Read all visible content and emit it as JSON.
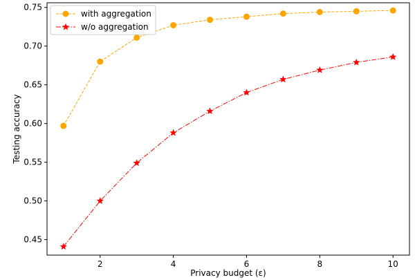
{
  "chart_data": {
    "type": "line",
    "xlabel": "Privacy budget (ε)",
    "ylabel": "Testing accuracy",
    "xlim": [
      0.55,
      10.45
    ],
    "ylim": [
      0.43,
      0.756
    ],
    "xticks": [
      2,
      4,
      6,
      8,
      10
    ],
    "yticks": [
      0.45,
      0.5,
      0.55,
      0.6,
      0.65,
      0.7,
      0.75
    ],
    "ytick_labels": [
      "0.45",
      "0.50",
      "0.55",
      "0.60",
      "0.65",
      "0.70",
      "0.75"
    ],
    "grid": false,
    "legend_position": "top-left",
    "x": [
      1,
      2,
      3,
      4,
      5,
      6,
      7,
      8,
      9,
      10
    ],
    "series": [
      {
        "name": "with aggregation",
        "color": "#FFA500",
        "marker": "circle",
        "line_style": "dashed",
        "values": [
          0.597,
          0.68,
          0.711,
          0.727,
          0.734,
          0.738,
          0.742,
          0.744,
          0.745,
          0.746
        ]
      },
      {
        "name": "w/o aggregation",
        "color": "#FF0000",
        "marker": "star",
        "line_style": "dash-dot",
        "values": [
          0.441,
          0.5,
          0.549,
          0.588,
          0.616,
          0.64,
          0.657,
          0.669,
          0.679,
          0.686
        ]
      }
    ]
  }
}
